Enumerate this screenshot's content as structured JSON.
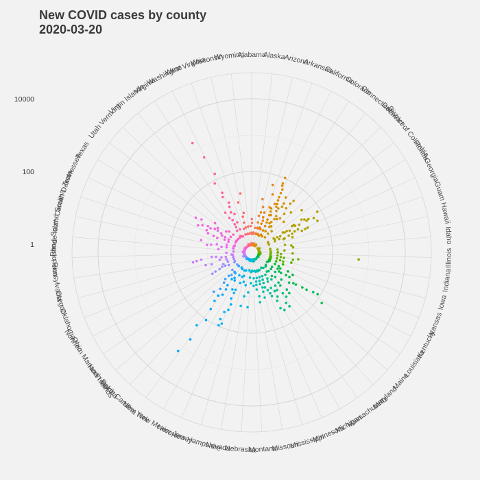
{
  "chart_data": {
    "type": "scatter",
    "coord": "polar",
    "title": "New COVID cases by county",
    "subtitle": "2020-03-20",
    "y_scale": "log10",
    "y_ticks": [
      {
        "value": 1,
        "label": "1"
      },
      {
        "value": 100,
        "label": "100"
      },
      {
        "value": 10000,
        "label": "10000"
      }
    ],
    "grid": true,
    "legend": "none",
    "categories": [
      {
        "name": "Alabama",
        "color": "#f8766d",
        "values": [
          1,
          1,
          2,
          1,
          1,
          3,
          1,
          2,
          1,
          5,
          1,
          2,
          1,
          1,
          4,
          1
        ]
      },
      {
        "name": "Alaska",
        "color": "#f47a5a",
        "values": [
          1,
          2,
          1,
          3,
          1,
          2,
          1
        ]
      },
      {
        "name": "Arizona",
        "color": "#ea8331",
        "values": [
          1,
          2,
          4,
          3,
          8,
          6,
          12,
          2,
          1,
          3,
          18
        ]
      },
      {
        "name": "Arkansas",
        "color": "#e68613",
        "values": [
          1,
          2,
          3,
          1,
          5,
          8,
          2,
          4,
          12,
          30,
          6,
          3,
          2,
          50,
          1,
          2
        ]
      },
      {
        "name": "California",
        "color": "#de8c00",
        "values": [
          2,
          5,
          10,
          20,
          50,
          100,
          4,
          8,
          15,
          30,
          60,
          3,
          6,
          12,
          25,
          1,
          2,
          40,
          70,
          9,
          18
        ]
      },
      {
        "name": "Colorado",
        "color": "#d59200",
        "values": [
          1,
          3,
          5,
          8,
          2,
          12,
          20,
          35,
          4,
          6,
          15,
          10,
          2,
          1,
          25
        ]
      },
      {
        "name": "Connecticut",
        "color": "#cd9600",
        "values": [
          5,
          10,
          20,
          3,
          40,
          8,
          15,
          30,
          2
        ]
      },
      {
        "name": "Delaware",
        "color": "#c49a00",
        "values": [
          4,
          10,
          20
        ]
      },
      {
        "name": "District of Columbia",
        "color": "#bb9d00",
        "values": [
          40
        ]
      },
      {
        "name": "Florida",
        "color": "#b3a000",
        "values": [
          1,
          2,
          3,
          5,
          8,
          12,
          20,
          30,
          50,
          4,
          6,
          10,
          15,
          25,
          40,
          2,
          3,
          7,
          14,
          35,
          80
        ]
      },
      {
        "name": "Georgia",
        "color": "#aba300",
        "values": [
          1,
          2,
          4,
          6,
          10,
          15,
          25,
          3,
          5,
          8,
          12,
          20,
          2,
          1,
          30,
          60
        ]
      },
      {
        "name": "Guam",
        "color": "#a3a500",
        "values": [
          10
        ]
      },
      {
        "name": "Hawaii",
        "color": "#99a800",
        "values": [
          1,
          2,
          5,
          8
        ]
      },
      {
        "name": "Idaho",
        "color": "#8fab00",
        "values": [
          1,
          2,
          3,
          5,
          1,
          8
        ]
      },
      {
        "name": "Illinois",
        "color": "#7cae00",
        "values": [
          1,
          2,
          3,
          4,
          8,
          3,
          1,
          2,
          500
        ]
      },
      {
        "name": "Indiana",
        "color": "#6bb100",
        "values": [
          1,
          2,
          3,
          5,
          2,
          1,
          4,
          1,
          8,
          12
        ]
      },
      {
        "name": "Iowa",
        "color": "#53b400",
        "values": [
          1,
          2,
          3,
          5,
          8,
          2,
          4,
          1
        ]
      },
      {
        "name": "Kansas",
        "color": "#2bb700",
        "values": [
          1,
          2,
          3,
          1,
          5,
          2
        ]
      },
      {
        "name": "Kentucky",
        "color": "#00ba38",
        "values": [
          1,
          2,
          3,
          5,
          8,
          2,
          12,
          4
        ]
      },
      {
        "name": "Louisiana",
        "color": "#00bb4e",
        "values": [
          2,
          5,
          10,
          20,
          40,
          80,
          3,
          8,
          15,
          30,
          60,
          150,
          1,
          4,
          6
        ]
      },
      {
        "name": "Maine",
        "color": "#00bc5f",
        "values": [
          1,
          2,
          4,
          8,
          3,
          12
        ]
      },
      {
        "name": "Maryland",
        "color": "#00be6c",
        "values": [
          1,
          3,
          5,
          10,
          20,
          2,
          8,
          15,
          4
        ]
      },
      {
        "name": "Massachusetts",
        "color": "#00bf7d",
        "values": [
          3,
          8,
          15,
          30,
          5,
          20,
          40,
          2,
          10,
          1
        ]
      },
      {
        "name": "Michigan",
        "color": "#00c08b",
        "values": [
          2,
          5,
          10,
          20,
          40,
          3,
          8,
          15,
          30,
          1,
          4
        ]
      },
      {
        "name": "Minnesota",
        "color": "#00c19a",
        "values": [
          1,
          2,
          3,
          5,
          8,
          12,
          4,
          2,
          6,
          1,
          10
        ]
      },
      {
        "name": "Mississippi",
        "color": "#00c0ac",
        "values": [
          1,
          2,
          3,
          5,
          8,
          2,
          4,
          6,
          1,
          12
        ]
      },
      {
        "name": "Missouri",
        "color": "#00c0b8",
        "values": [
          1,
          2,
          3,
          5,
          10,
          2,
          4,
          1,
          6,
          15
        ]
      },
      {
        "name": "Montana",
        "color": "#00bfc4",
        "values": [
          1,
          2,
          3,
          2,
          5,
          1
        ]
      },
      {
        "name": "Nebraska",
        "color": "#00bbcf",
        "values": [
          1,
          3,
          2,
          8,
          1,
          4,
          20
        ]
      },
      {
        "name": "Nevada",
        "color": "#00b8e7",
        "values": [
          2,
          5,
          1,
          20,
          10
        ]
      },
      {
        "name": "New Hampshire",
        "color": "#00b4ef",
        "values": [
          1,
          2,
          4,
          3,
          1
        ]
      },
      {
        "name": "New Jersey",
        "color": "#00b0f6",
        "values": [
          5,
          10,
          20,
          40,
          80,
          3,
          15,
          30,
          60,
          8,
          2,
          100
        ]
      },
      {
        "name": "New Mexico",
        "color": "#00abfd",
        "values": [
          1,
          2,
          3,
          5,
          2,
          8
        ]
      },
      {
        "name": "New York",
        "color": "#00a9ff",
        "values": [
          2,
          5,
          10,
          20,
          50,
          100,
          200,
          500,
          3,
          8,
          15,
          30,
          1,
          4,
          1500
        ]
      },
      {
        "name": "North Carolina",
        "color": "#35a2ff",
        "values": [
          1,
          2,
          3,
          5,
          8,
          12,
          2,
          4,
          6,
          1,
          3,
          20
        ]
      },
      {
        "name": "North Dakota",
        "color": "#619cff",
        "values": [
          1,
          2,
          3,
          1
        ]
      },
      {
        "name": "Northern Mariana Islands",
        "color": "#7996ff",
        "values": [
          1
        ]
      },
      {
        "name": "Ohio",
        "color": "#9590ff",
        "values": [
          1,
          2,
          3,
          5,
          8,
          2,
          4,
          10,
          1,
          6
        ]
      },
      {
        "name": "Oklahoma",
        "color": "#a68cff",
        "values": [
          1,
          2,
          4,
          1,
          3
        ]
      },
      {
        "name": "Oregon",
        "color": "#b983ff",
        "values": [
          1,
          2,
          3,
          5,
          2,
          8,
          1,
          12
        ]
      },
      {
        "name": "Pennsylvania",
        "color": "#c77cff",
        "values": [
          1,
          2,
          4,
          8,
          15,
          3,
          6,
          20,
          2,
          1,
          25
        ]
      },
      {
        "name": "Puerto Rico",
        "color": "#d376ff",
        "values": [
          1,
          3
        ]
      },
      {
        "name": "Rhode Island",
        "color": "#dc71fa",
        "values": [
          2,
          5,
          1
        ]
      },
      {
        "name": "South Carolina",
        "color": "#e56ef1",
        "values": [
          1,
          2,
          4,
          6,
          3,
          10,
          2,
          8,
          15
        ]
      },
      {
        "name": "South Dakota",
        "color": "#eb6be9",
        "values": [
          1,
          2,
          3,
          1
        ]
      },
      {
        "name": "Tennessee",
        "color": "#f066dd",
        "values": [
          2,
          4,
          8,
          15,
          3,
          6,
          1,
          12,
          25
        ]
      },
      {
        "name": "Texas",
        "color": "#f564e3",
        "values": [
          1,
          2,
          4,
          8,
          15,
          3,
          6,
          12,
          25,
          2,
          5,
          10,
          1,
          20,
          40
        ]
      },
      {
        "name": "Utah",
        "color": "#f763d0",
        "values": [
          1,
          2,
          3,
          5,
          2,
          8,
          12
        ]
      },
      {
        "name": "Vermont",
        "color": "#fa62c3",
        "values": [
          1,
          2,
          4,
          1,
          3
        ]
      },
      {
        "name": "Virgin Islands",
        "color": "#fc61b4",
        "values": [
          1,
          2
        ]
      },
      {
        "name": "Virginia",
        "color": "#fd61a6",
        "values": [
          1,
          2,
          3,
          5,
          8,
          2,
          4,
          12,
          6
        ]
      },
      {
        "name": "Washington",
        "color": "#fe6394",
        "values": [
          2,
          5,
          10,
          20,
          40,
          80,
          150,
          3,
          8,
          15,
          30,
          1,
          500,
          1500
        ]
      },
      {
        "name": "West Virginia",
        "color": "#ff6583",
        "values": [
          1,
          2,
          1,
          3
        ]
      },
      {
        "name": "Wisconsin",
        "color": "#fd6c6f",
        "values": [
          1,
          2,
          4,
          8,
          3,
          15,
          2,
          6,
          25
        ]
      },
      {
        "name": "Wyoming",
        "color": "#fb7062",
        "values": [
          1,
          2,
          3,
          1
        ]
      }
    ]
  }
}
